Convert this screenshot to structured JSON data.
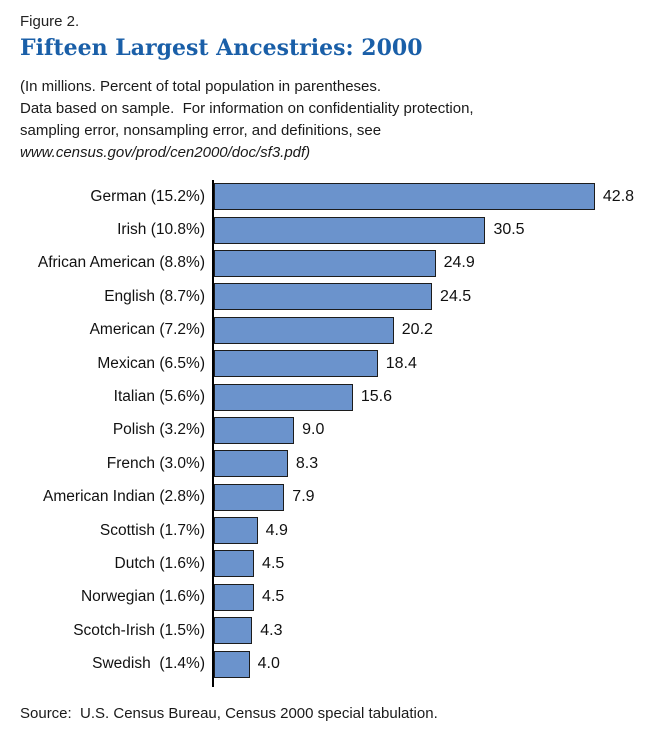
{
  "figure_label": "Figure 2.",
  "title": "Fifteen Largest Ancestries: 2000",
  "note_lines": [
    "(In millions. Percent of total population in parentheses.",
    "Data based on sample.  For information on confidentiality protection,",
    "sampling error, nonsampling error, and definitions, see"
  ],
  "note_url": "www.census.gov/prod/cen2000/doc/sf3.pdf)",
  "source": "Source:  U.S. Census Bureau, Census 2000 special tabulation.",
  "colors": {
    "title": "#1A5FA8",
    "bar_fill": "#6B93CC",
    "bar_border": "#1c1c1c",
    "axis": "#000000"
  },
  "chart_data": {
    "type": "bar",
    "orientation": "horizontal",
    "title": "Fifteen Largest Ancestries: 2000",
    "unit": "millions of people",
    "categories": [
      "German (15.2%)",
      "Irish (10.8%)",
      "African American (8.8%)",
      "English (8.7%)",
      "American (7.2%)",
      "Mexican (6.5%)",
      "Italian (5.6%)",
      "Polish (3.2%)",
      "French (3.0%)",
      "American Indian (2.8%)",
      "Scottish (1.7%)",
      "Dutch (1.6%)",
      "Norwegian (1.6%)",
      "Scotch-Irish (1.5%)",
      "Swedish  (1.4%)"
    ],
    "values": [
      42.8,
      30.5,
      24.9,
      24.5,
      20.2,
      18.4,
      15.6,
      9.0,
      8.3,
      7.9,
      4.9,
      4.5,
      4.5,
      4.3,
      4.0
    ],
    "value_labels": [
      "42.8",
      "30.5",
      "24.9",
      "24.5",
      "20.2",
      "18.4",
      "15.6",
      "9.0",
      "8.3",
      "7.9",
      "4.9",
      "4.5",
      "4.5",
      "4.3",
      "4.0"
    ],
    "xlim": [
      0,
      48
    ],
    "grid": false,
    "legend": "none",
    "value_labels_position": "right-of-bar"
  }
}
